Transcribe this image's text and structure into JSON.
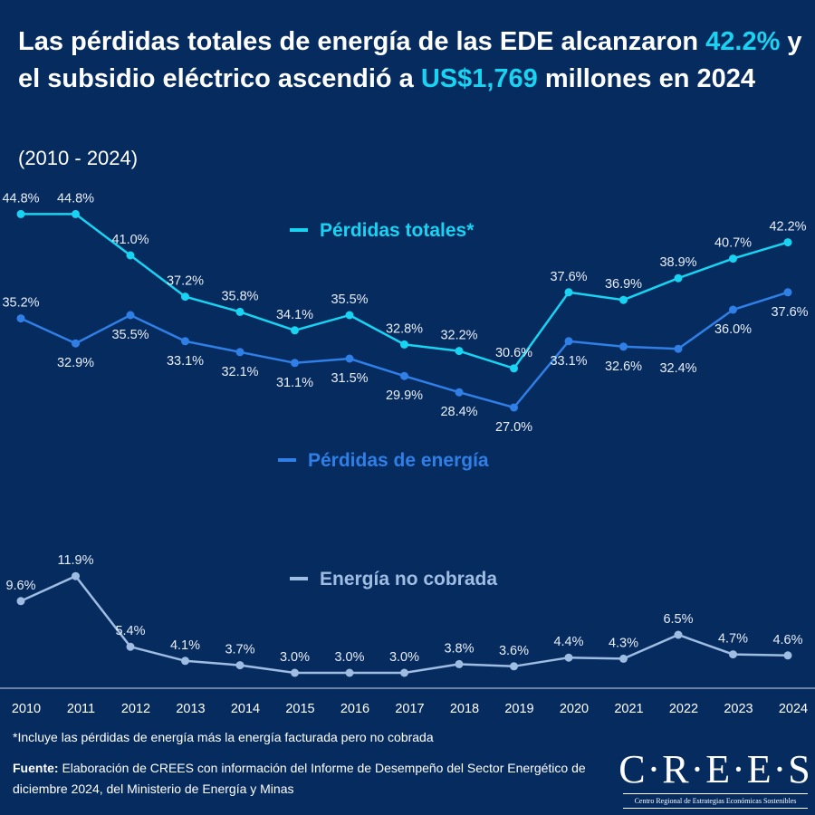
{
  "title": {
    "part1": "Las pérdidas totales de energía de las EDE alcanzaron ",
    "hl1": "42.2%",
    "part2": " y el subsidio eléctrico ascendió a ",
    "hl2": "US$1,769",
    "part3": " millones en 2024"
  },
  "subtitle": "(2010 - 2024)",
  "chart_data": {
    "type": "line",
    "categories": [
      "2010",
      "2011",
      "2012",
      "2013",
      "2014",
      "2015",
      "2016",
      "2017",
      "2018",
      "2019",
      "2020",
      "2021",
      "2022",
      "2023",
      "2024"
    ],
    "series": [
      {
        "name": "Pérdidas totales*",
        "color": "#19d3f2",
        "values": [
          44.8,
          44.8,
          41.0,
          37.2,
          35.8,
          34.1,
          35.5,
          32.8,
          32.2,
          30.6,
          37.6,
          36.9,
          38.9,
          40.7,
          42.2
        ],
        "labels": [
          "44.8%",
          "44.8%",
          "41.0%",
          "37.2%",
          "35.8%",
          "34.1%",
          "35.5%",
          "32.8%",
          "32.2%",
          "30.6%",
          "37.6%",
          "36.9%",
          "38.9%",
          "40.7%",
          "42.2%"
        ]
      },
      {
        "name": "Pérdidas de energía",
        "color": "#2f7fe6",
        "values": [
          35.2,
          32.9,
          35.5,
          33.1,
          32.1,
          31.1,
          31.5,
          29.9,
          28.4,
          27.0,
          33.1,
          32.6,
          32.4,
          36.0,
          37.6
        ],
        "labels": [
          "35.2%",
          "32.9%",
          "35.5%",
          "33.1%",
          "32.1%",
          "31.1%",
          "31.5%",
          "29.9%",
          "28.4%",
          "27.0%",
          "33.1%",
          "32.6%",
          "32.4%",
          "36.0%",
          "37.6%"
        ]
      },
      {
        "name": "Energía no cobrada",
        "color": "#9fbde3",
        "values": [
          9.6,
          11.9,
          5.4,
          4.1,
          3.7,
          3.0,
          3.0,
          3.0,
          3.8,
          3.6,
          4.4,
          4.3,
          6.5,
          4.7,
          4.6
        ],
        "labels": [
          "9.6%",
          "11.9%",
          "5.4%",
          "4.1%",
          "3.7%",
          "3.0%",
          "3.0%",
          "3.0%",
          "3.8%",
          "3.6%",
          "4.4%",
          "4.3%",
          "6.5%",
          "4.7%",
          "4.6%"
        ]
      }
    ],
    "grid": false
  },
  "footnote": "*Incluye las pérdidas de energía más la energía facturada pero no cobrada",
  "source": {
    "label": "Fuente:",
    "text": " Elaboración de CREES con información del Informe de Desempeño del Sector Energético de diciembre 2024, del Ministerio de Energía y Minas"
  },
  "logo": {
    "name": "C·R·E·E·S",
    "tagline": "Centro Regional de Estrategias Económicas Sostenibles"
  }
}
